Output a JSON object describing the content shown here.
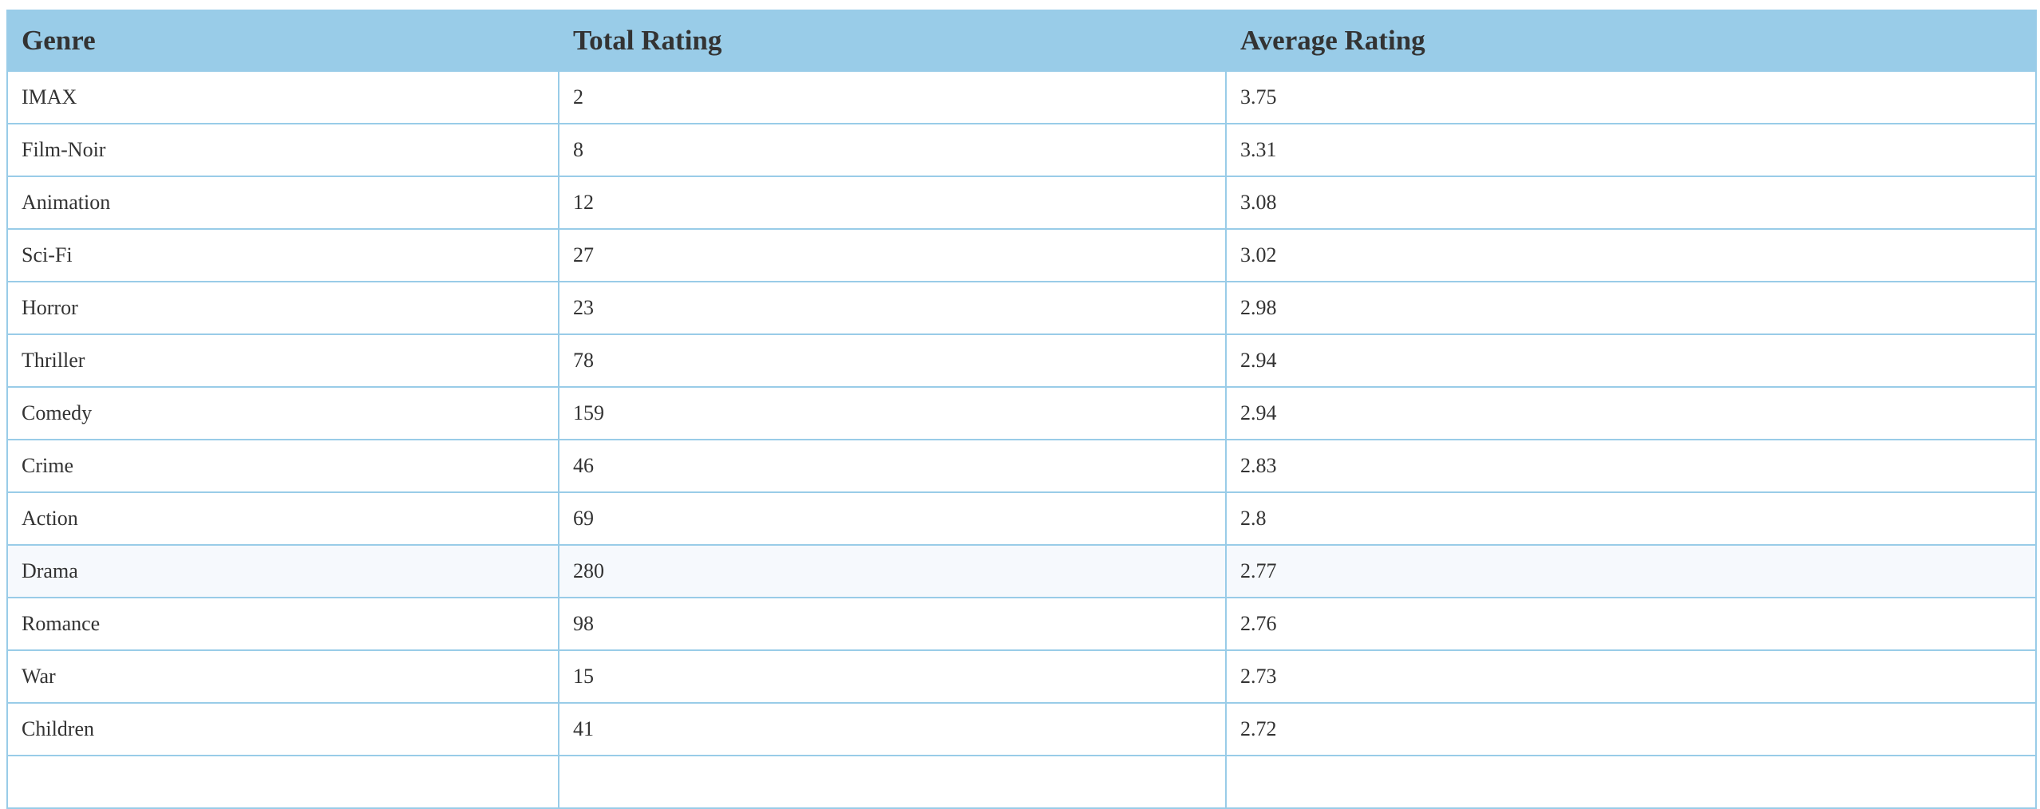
{
  "table": {
    "headers": {
      "genre": "Genre",
      "total": "Total Rating",
      "average": "Average Rating"
    },
    "rows": [
      {
        "genre": "IMAX",
        "total": "2",
        "average": "3.75"
      },
      {
        "genre": "Film-Noir",
        "total": "8",
        "average": "3.31"
      },
      {
        "genre": "Animation",
        "total": "12",
        "average": "3.08"
      },
      {
        "genre": "Sci-Fi",
        "total": "27",
        "average": "3.02"
      },
      {
        "genre": "Horror",
        "total": "23",
        "average": "2.98"
      },
      {
        "genre": "Thriller",
        "total": "78",
        "average": "2.94"
      },
      {
        "genre": "Comedy",
        "total": "159",
        "average": "2.94"
      },
      {
        "genre": "Crime",
        "total": "46",
        "average": "2.83"
      },
      {
        "genre": "Action",
        "total": "69",
        "average": "2.8"
      },
      {
        "genre": "Drama",
        "total": "280",
        "average": "2.77"
      },
      {
        "genre": "Romance",
        "total": "98",
        "average": "2.76"
      },
      {
        "genre": "War",
        "total": "15",
        "average": "2.73"
      },
      {
        "genre": "Children",
        "total": "41",
        "average": "2.72"
      },
      {
        "genre": "",
        "total": "",
        "average": ""
      }
    ]
  },
  "colors": {
    "header_bg": "#99cce8",
    "border": "#99cce8",
    "text": "#333333"
  }
}
